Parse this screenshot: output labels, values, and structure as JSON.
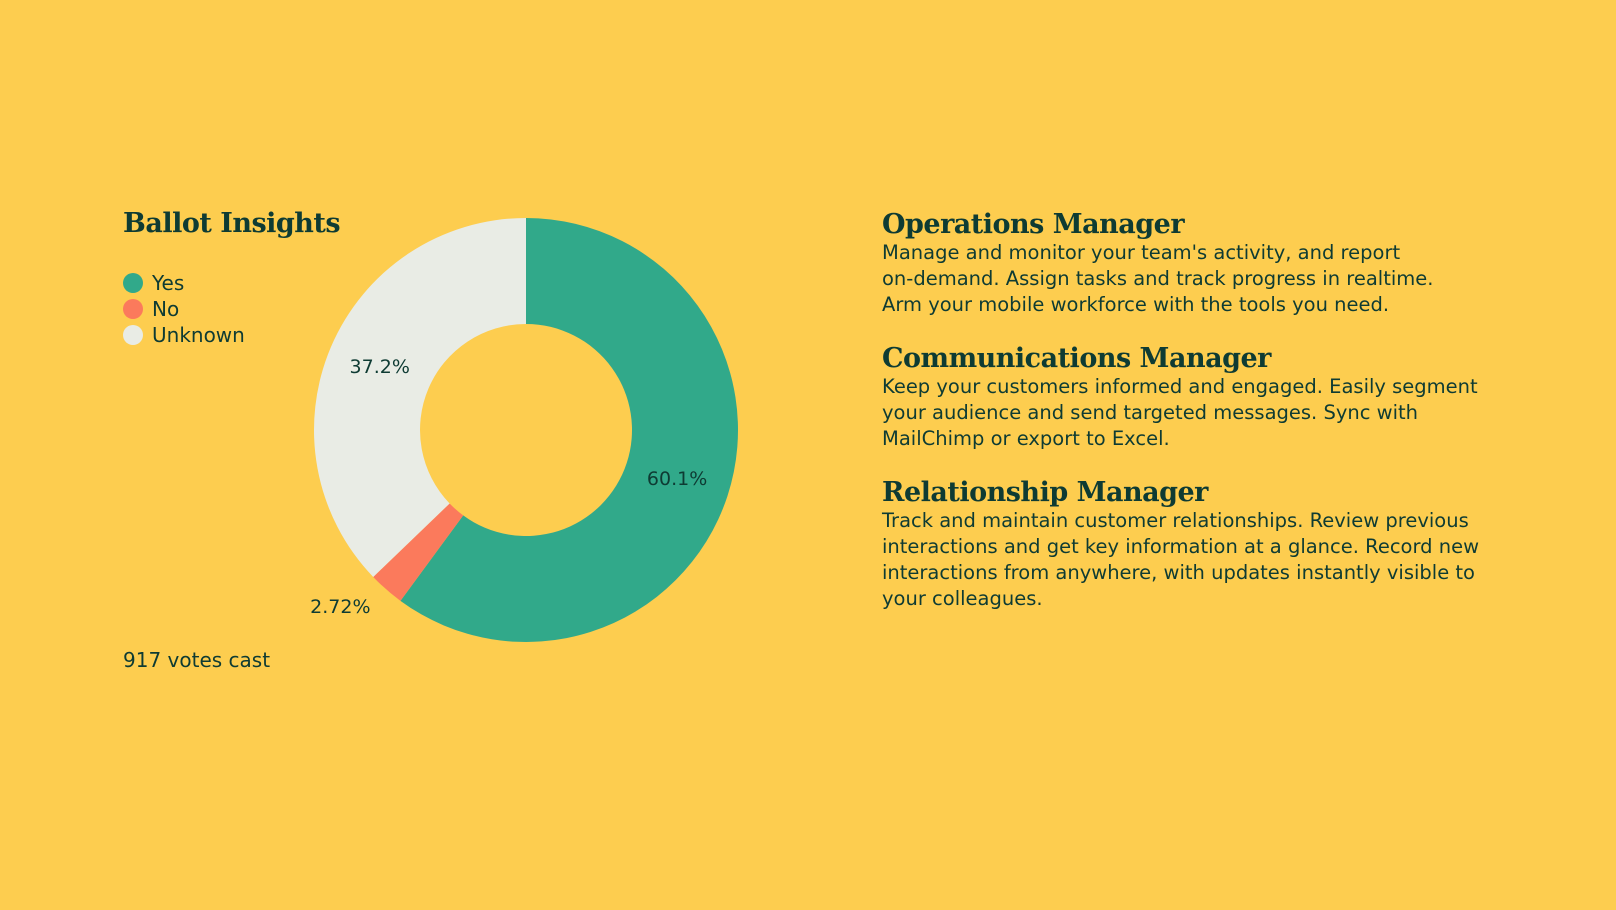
{
  "colors": {
    "background": "#FDCD4F",
    "text": "#0E3B33",
    "yes": "#31A98A",
    "no": "#FB7A5C",
    "unknown": "#E9ECE5"
  },
  "chart_data": {
    "type": "pie",
    "variant": "donut",
    "title": "Ballot Insights",
    "legend_position": "top-left",
    "slices": [
      {
        "label": "Yes",
        "percent": 60.1,
        "display": "60.1%",
        "color": "#31A98A"
      },
      {
        "label": "No",
        "percent": 2.72,
        "display": "2.72%",
        "color": "#FB7A5C"
      },
      {
        "label": "Unknown",
        "percent": 37.2,
        "display": "37.2%",
        "color": "#E9ECE5"
      }
    ],
    "footer": "917 votes cast"
  },
  "features": [
    {
      "title": "Operations Manager",
      "lines": [
        "Manage and monitor your team's activity, and report",
        "on-demand. Assign tasks and track progress in realtime.",
        "Arm your mobile workforce with the tools you need."
      ]
    },
    {
      "title": "Communications Manager",
      "lines": [
        "Keep your customers informed and engaged. Easily segment",
        "your audience and send targeted messages. Sync with",
        "MailChimp or export to Excel."
      ]
    },
    {
      "title": "Relationship Manager",
      "lines": [
        "Track and maintain customer relationships. Review previous",
        "interactions and get key information at a glance. Record new",
        "interactions from anywhere, with updates instantly visible to",
        "your colleagues."
      ]
    }
  ]
}
